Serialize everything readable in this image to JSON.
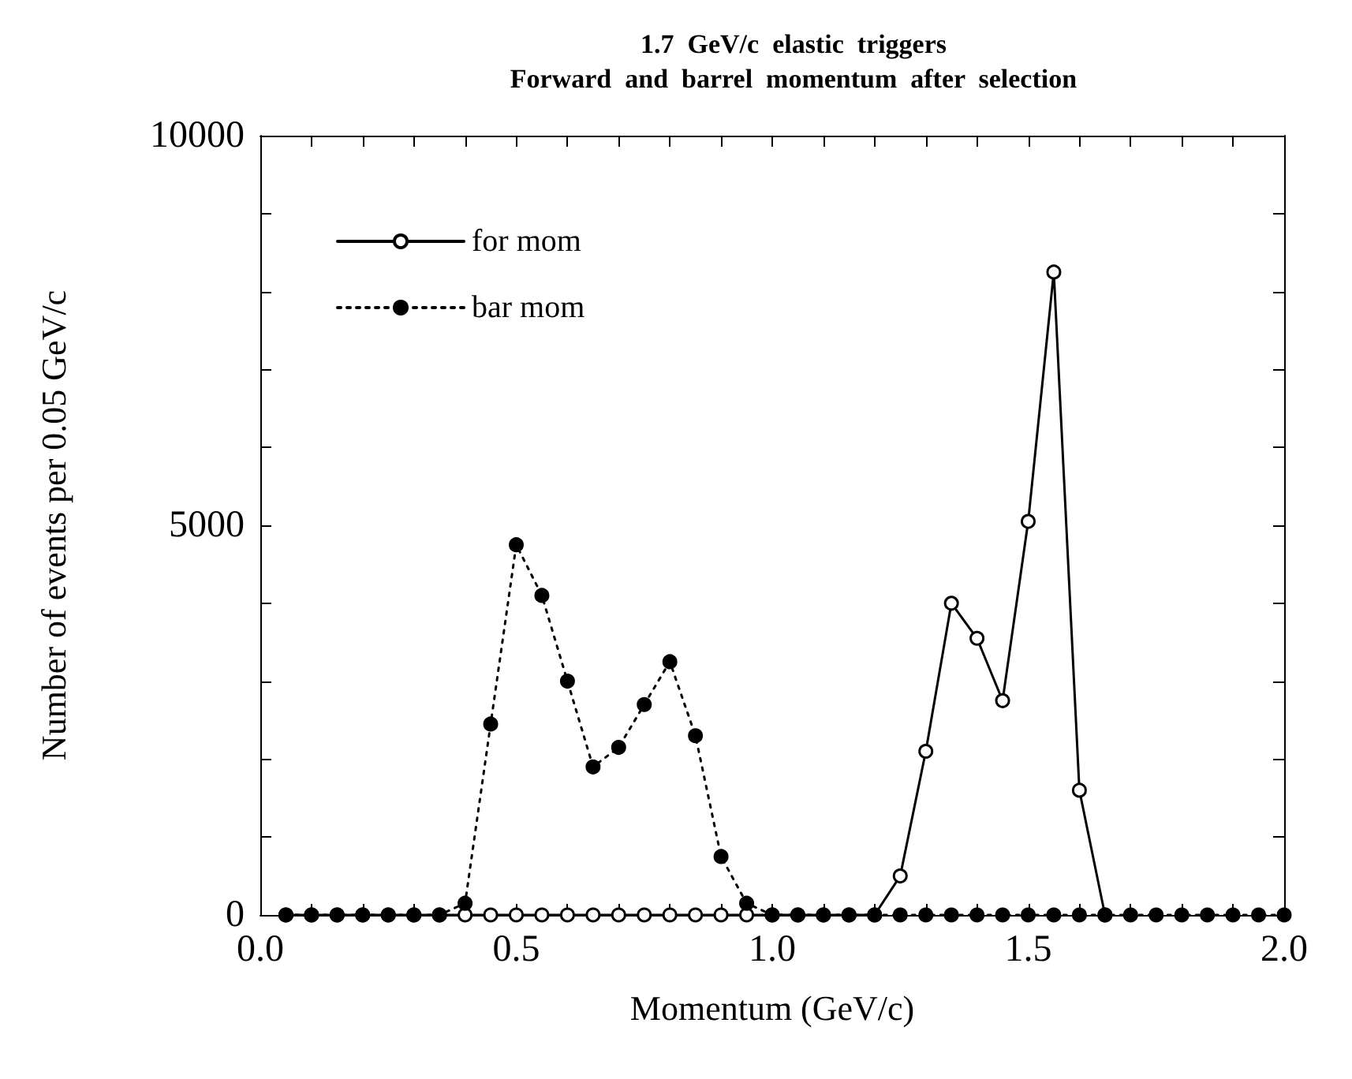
{
  "chart_data": {
    "type": "line",
    "title": "1.7  GeV/c  elastic  triggers\nForward  and  barrel  momentum  after  selection",
    "xlabel": "Momentum (GeV/c)",
    "ylabel": "Number of events per 0.05 GeV/c",
    "xlim": [
      0,
      2
    ],
    "ylim": [
      0,
      10000
    ],
    "xticks": [
      {
        "value": 0,
        "label": "0.0"
      },
      {
        "value": 0.1,
        "label": null
      },
      {
        "value": 0.2,
        "label": null
      },
      {
        "value": 0.3,
        "label": null
      },
      {
        "value": 0.4,
        "label": null
      },
      {
        "value": 0.5,
        "label": "0.5"
      },
      {
        "value": 0.6,
        "label": null
      },
      {
        "value": 0.7,
        "label": null
      },
      {
        "value": 0.8,
        "label": null
      },
      {
        "value": 0.9,
        "label": null
      },
      {
        "value": 1,
        "label": "1.0"
      },
      {
        "value": 1.1,
        "label": null
      },
      {
        "value": 1.2,
        "label": null
      },
      {
        "value": 1.3,
        "label": null
      },
      {
        "value": 1.4,
        "label": null
      },
      {
        "value": 1.5,
        "label": "1.5"
      },
      {
        "value": 1.6,
        "label": null
      },
      {
        "value": 1.7,
        "label": null
      },
      {
        "value": 1.8,
        "label": null
      },
      {
        "value": 1.9,
        "label": null
      },
      {
        "value": 2,
        "label": "2.0"
      }
    ],
    "yticks": [
      0,
      {
        "value": 1000,
        "label": null
      },
      {
        "value": 2000,
        "label": null
      },
      {
        "value": 3000,
        "label": null
      },
      {
        "value": 4000,
        "label": null
      },
      5000,
      {
        "value": 6000,
        "label": null
      },
      {
        "value": 7000,
        "label": null
      },
      {
        "value": 8000,
        "label": null
      },
      {
        "value": 9000,
        "label": null
      },
      10000
    ],
    "grid": false,
    "legend": "top left",
    "series": [
      {
        "name": "for mom",
        "color": "#000000",
        "marker": "circle",
        "line_style": "solid",
        "x": [
          0.05,
          0.1,
          0.15,
          0.2,
          0.25,
          0.3,
          0.35,
          0.4,
          0.45,
          0.5,
          0.55,
          0.6,
          0.65,
          0.7,
          0.75,
          0.8,
          0.85,
          0.9,
          0.95,
          1,
          1.05,
          1.1,
          1.15,
          1.2,
          1.25,
          1.3,
          1.35,
          1.4,
          1.45,
          1.5,
          1.55,
          1.6,
          1.65
        ],
        "values": [
          0,
          0,
          0,
          0,
          0,
          0,
          0,
          0,
          0,
          0,
          0,
          0,
          0,
          0,
          0,
          0,
          0,
          0,
          0,
          0,
          0,
          0,
          0,
          0,
          500,
          2100,
          4000,
          3550,
          2750,
          5050,
          8250,
          1600,
          0
        ]
      },
      {
        "name": "bar mom",
        "color": "#000000",
        "marker": "circle",
        "line_style": "dotted",
        "x": [
          0.05,
          0.1,
          0.15,
          0.2,
          0.25,
          0.3,
          0.35,
          0.4,
          0.45,
          0.5,
          0.55,
          0.6,
          0.65,
          0.7,
          0.75,
          0.8,
          0.85,
          0.9,
          0.95,
          1,
          1.05,
          1.1,
          1.15,
          1.2,
          1.25,
          1.3,
          1.35,
          1.4,
          1.45,
          1.5,
          1.55,
          1.6,
          1.65,
          1.7,
          1.75,
          1.8,
          1.85,
          1.9,
          1.95,
          2
        ],
        "values": [
          0,
          0,
          0,
          0,
          0,
          0,
          0,
          150,
          2450,
          4750,
          4100,
          3000,
          1900,
          2150,
          2700,
          3250,
          2300,
          750,
          150,
          0,
          0,
          0,
          0,
          0,
          0,
          0,
          0,
          0,
          0,
          0,
          0,
          0,
          0,
          0,
          0,
          0,
          0,
          0,
          0,
          0
        ]
      }
    ]
  }
}
